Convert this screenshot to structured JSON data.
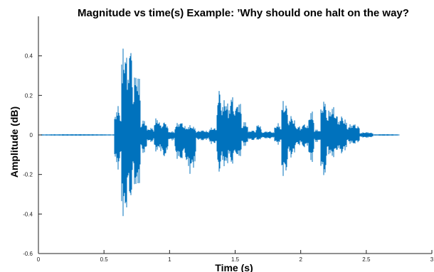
{
  "chart_data": {
    "type": "line",
    "title": "Magnitude vs time(s) Example: ’Why should one halt on the way?",
    "xlabel": "Time (s)",
    "ylabel": "Amplitude (dB)",
    "xlim": [
      0,
      3
    ],
    "ylim": [
      -0.6,
      0.6
    ],
    "xticks": [
      0,
      0.5,
      1,
      1.5,
      2,
      2.5,
      3
    ],
    "xtick_labels": [
      "0",
      "0.5",
      "1",
      "1.5",
      "2",
      "2.5",
      "3"
    ],
    "yticks": [
      -0.6,
      -0.4,
      -0.2,
      0,
      0.2,
      0.4
    ],
    "ytick_labels": [
      "-0.6",
      "-0.4",
      "-0.2",
      "0",
      "0.2",
      "0.4"
    ],
    "grid": false,
    "line_color": "#0072BD",
    "series": [
      {
        "segments": [
          {
            "x_start": 0.0,
            "x_end": 0.58,
            "amp_max": 0.004,
            "amp_min": -0.004
          },
          {
            "x_start": 0.58,
            "x_end": 0.63,
            "amp_max": 0.15,
            "amp_min": -0.18
          },
          {
            "x_start": 0.63,
            "x_end": 0.68,
            "amp_max": 0.5,
            "amp_min": -0.47
          },
          {
            "x_start": 0.68,
            "x_end": 0.72,
            "amp_max": 0.49,
            "amp_min": -0.36
          },
          {
            "x_start": 0.72,
            "x_end": 0.78,
            "amp_max": 0.35,
            "amp_min": -0.3
          },
          {
            "x_start": 0.78,
            "x_end": 0.83,
            "amp_max": 0.08,
            "amp_min": -0.1
          },
          {
            "x_start": 0.83,
            "x_end": 0.88,
            "amp_max": 0.04,
            "amp_min": -0.04
          },
          {
            "x_start": 0.88,
            "x_end": 0.93,
            "amp_max": 0.09,
            "amp_min": -0.09
          },
          {
            "x_start": 0.93,
            "x_end": 0.99,
            "amp_max": 0.07,
            "amp_min": -0.12
          },
          {
            "x_start": 0.99,
            "x_end": 1.04,
            "amp_max": 0.02,
            "amp_min": -0.03
          },
          {
            "x_start": 1.04,
            "x_end": 1.12,
            "amp_max": 0.07,
            "amp_min": -0.14
          },
          {
            "x_start": 1.12,
            "x_end": 1.2,
            "amp_max": 0.05,
            "amp_min": -0.2
          },
          {
            "x_start": 1.2,
            "x_end": 1.3,
            "amp_max": 0.025,
            "amp_min": -0.03
          },
          {
            "x_start": 1.3,
            "x_end": 1.36,
            "amp_max": 0.04,
            "amp_min": -0.05
          },
          {
            "x_start": 1.36,
            "x_end": 1.4,
            "amp_max": 0.24,
            "amp_min": -0.2
          },
          {
            "x_start": 1.4,
            "x_end": 1.45,
            "amp_max": 0.2,
            "amp_min": -0.18
          },
          {
            "x_start": 1.45,
            "x_end": 1.5,
            "amp_max": 0.21,
            "amp_min": -0.16
          },
          {
            "x_start": 1.5,
            "x_end": 1.55,
            "amp_max": 0.19,
            "amp_min": -0.13
          },
          {
            "x_start": 1.55,
            "x_end": 1.6,
            "amp_max": 0.07,
            "amp_min": -0.06
          },
          {
            "x_start": 1.6,
            "x_end": 1.66,
            "amp_max": 0.025,
            "amp_min": -0.03
          },
          {
            "x_start": 1.66,
            "x_end": 1.7,
            "amp_max": 0.06,
            "amp_min": -0.03
          },
          {
            "x_start": 1.7,
            "x_end": 1.8,
            "amp_max": 0.02,
            "amp_min": -0.02
          },
          {
            "x_start": 1.8,
            "x_end": 1.85,
            "amp_max": 0.06,
            "amp_min": -0.05
          },
          {
            "x_start": 1.85,
            "x_end": 1.9,
            "amp_max": 0.19,
            "amp_min": -0.23
          },
          {
            "x_start": 1.9,
            "x_end": 1.96,
            "amp_max": 0.1,
            "amp_min": -0.12
          },
          {
            "x_start": 1.96,
            "x_end": 2.0,
            "amp_max": 0.05,
            "amp_min": -0.06
          },
          {
            "x_start": 2.0,
            "x_end": 2.06,
            "amp_max": 0.06,
            "amp_min": -0.07
          },
          {
            "x_start": 2.06,
            "x_end": 2.1,
            "amp_max": 0.13,
            "amp_min": -0.15
          },
          {
            "x_start": 2.1,
            "x_end": 2.15,
            "amp_max": 0.03,
            "amp_min": -0.04
          },
          {
            "x_start": 2.15,
            "x_end": 2.2,
            "amp_max": 0.19,
            "amp_min": -0.23
          },
          {
            "x_start": 2.2,
            "x_end": 2.28,
            "amp_max": 0.15,
            "amp_min": -0.12
          },
          {
            "x_start": 2.28,
            "x_end": 2.35,
            "amp_max": 0.1,
            "amp_min": -0.1
          },
          {
            "x_start": 2.35,
            "x_end": 2.45,
            "amp_max": 0.06,
            "amp_min": -0.05
          },
          {
            "x_start": 2.45,
            "x_end": 2.55,
            "amp_max": 0.015,
            "amp_min": -0.015
          },
          {
            "x_start": 2.55,
            "x_end": 2.75,
            "amp_max": 0.004,
            "amp_min": -0.004
          }
        ]
      }
    ]
  }
}
